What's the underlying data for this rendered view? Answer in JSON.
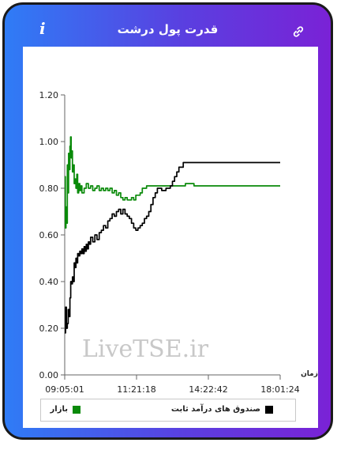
{
  "header": {
    "title": "قدرت پول درشت",
    "info_icon": "info-icon",
    "link_icon": "link-icon"
  },
  "colors": {
    "gradient_start": "#2f7cf6",
    "gradient_end": "#7a22d6",
    "series_market": "#0a8a0a",
    "series_fixed_income": "#000000"
  },
  "watermark": "LiveTSE.ir",
  "chart_data": {
    "type": "line",
    "xlabel": "زمان",
    "ylabel": "",
    "ylim": [
      0,
      1.2
    ],
    "yticks": [
      "0.00",
      "0.20",
      "0.40",
      "0.60",
      "0.80",
      "1.00",
      "1.20"
    ],
    "xticks": [
      "09:05:01",
      "11:21:18",
      "14:22:42",
      "18:01:24"
    ],
    "grid": false,
    "legend_position": "bottom",
    "series": [
      {
        "name": "بازار",
        "color": "#0a8a0a",
        "points": [
          [
            0,
            0.85
          ],
          [
            0.3,
            0.63
          ],
          [
            0.6,
            0.72
          ],
          [
            0.9,
            0.65
          ],
          [
            1.2,
            0.9
          ],
          [
            1.5,
            0.78
          ],
          [
            1.8,
            0.95
          ],
          [
            2.1,
            0.88
          ],
          [
            2.4,
            0.98
          ],
          [
            2.7,
            1.02
          ],
          [
            3.0,
            0.93
          ],
          [
            3.3,
            0.96
          ],
          [
            3.6,
            0.87
          ],
          [
            4.0,
            0.9
          ],
          [
            4.4,
            0.82
          ],
          [
            4.8,
            0.84
          ],
          [
            5.2,
            0.8
          ],
          [
            5.6,
            0.86
          ],
          [
            6.0,
            0.78
          ],
          [
            6.5,
            0.82
          ],
          [
            7.0,
            0.79
          ],
          [
            7.5,
            0.81
          ],
          [
            8.0,
            0.78
          ],
          [
            9.0,
            0.8
          ],
          [
            10,
            0.82
          ],
          [
            11,
            0.8
          ],
          [
            12,
            0.81
          ],
          [
            13,
            0.79
          ],
          [
            14,
            0.8
          ],
          [
            15,
            0.81
          ],
          [
            16,
            0.79
          ],
          [
            17,
            0.8
          ],
          [
            18,
            0.79
          ],
          [
            19,
            0.8
          ],
          [
            20,
            0.79
          ],
          [
            21,
            0.8
          ],
          [
            22,
            0.78
          ],
          [
            23,
            0.79
          ],
          [
            24,
            0.77
          ],
          [
            25,
            0.78
          ],
          [
            26,
            0.76
          ],
          [
            27,
            0.75
          ],
          [
            28,
            0.76
          ],
          [
            29,
            0.75
          ],
          [
            30,
            0.75
          ],
          [
            31,
            0.76
          ],
          [
            32,
            0.75
          ],
          [
            33,
            0.77
          ],
          [
            34,
            0.77
          ],
          [
            35,
            0.78
          ],
          [
            36,
            0.8
          ],
          [
            38,
            0.81
          ],
          [
            40,
            0.81
          ],
          [
            44,
            0.81
          ],
          [
            48,
            0.81
          ],
          [
            52,
            0.81
          ],
          [
            56,
            0.82
          ],
          [
            60,
            0.81
          ],
          [
            70,
            0.81
          ],
          [
            80,
            0.81
          ],
          [
            90,
            0.81
          ],
          [
            100,
            0.81
          ]
        ]
      },
      {
        "name": "صندوق های درآمد ثابت",
        "color": "#000000",
        "points": [
          [
            0,
            0.18
          ],
          [
            0.4,
            0.29
          ],
          [
            0.8,
            0.2
          ],
          [
            1.2,
            0.22
          ],
          [
            1.6,
            0.28
          ],
          [
            2.0,
            0.25
          ],
          [
            2.4,
            0.33
          ],
          [
            2.8,
            0.4
          ],
          [
            3.2,
            0.39
          ],
          [
            3.6,
            0.42
          ],
          [
            4.0,
            0.4
          ],
          [
            4.4,
            0.48
          ],
          [
            4.8,
            0.46
          ],
          [
            5.2,
            0.5
          ],
          [
            5.6,
            0.48
          ],
          [
            6.0,
            0.52
          ],
          [
            6.5,
            0.51
          ],
          [
            7.0,
            0.53
          ],
          [
            7.5,
            0.52
          ],
          [
            8.0,
            0.54
          ],
          [
            8.5,
            0.52
          ],
          [
            9.0,
            0.55
          ],
          [
            9.5,
            0.53
          ],
          [
            10,
            0.56
          ],
          [
            10.5,
            0.54
          ],
          [
            11,
            0.57
          ],
          [
            11.5,
            0.56
          ],
          [
            12,
            0.59
          ],
          [
            13,
            0.57
          ],
          [
            14,
            0.6
          ],
          [
            15,
            0.58
          ],
          [
            16,
            0.61
          ],
          [
            17,
            0.62
          ],
          [
            18,
            0.64
          ],
          [
            19,
            0.63
          ],
          [
            20,
            0.66
          ],
          [
            21,
            0.67
          ],
          [
            22,
            0.69
          ],
          [
            23,
            0.68
          ],
          [
            24,
            0.7
          ],
          [
            25,
            0.71
          ],
          [
            26,
            0.69
          ],
          [
            27,
            0.71
          ],
          [
            28,
            0.69
          ],
          [
            29,
            0.68
          ],
          [
            30,
            0.67
          ],
          [
            31,
            0.65
          ],
          [
            32,
            0.63
          ],
          [
            33,
            0.62
          ],
          [
            34,
            0.63
          ],
          [
            35,
            0.64
          ],
          [
            36,
            0.65
          ],
          [
            37,
            0.67
          ],
          [
            38,
            0.68
          ],
          [
            39,
            0.7
          ],
          [
            40,
            0.73
          ],
          [
            41,
            0.76
          ],
          [
            42,
            0.78
          ],
          [
            43,
            0.8
          ],
          [
            44,
            0.8
          ],
          [
            45,
            0.79
          ],
          [
            46,
            0.79
          ],
          [
            47,
            0.8
          ],
          [
            48,
            0.8
          ],
          [
            49,
            0.81
          ],
          [
            50,
            0.83
          ],
          [
            51,
            0.85
          ],
          [
            52,
            0.87
          ],
          [
            53,
            0.89
          ],
          [
            55,
            0.91
          ],
          [
            57,
            0.91
          ],
          [
            60,
            0.91
          ],
          [
            65,
            0.91
          ],
          [
            70,
            0.91
          ],
          [
            75,
            0.91
          ],
          [
            100,
            0.91
          ]
        ]
      }
    ]
  },
  "legend": {
    "items": [
      {
        "label": "صندوق های درآمد ثابت",
        "color": "#000000"
      },
      {
        "label": "بازار",
        "color": "#0a8a0a"
      }
    ]
  }
}
